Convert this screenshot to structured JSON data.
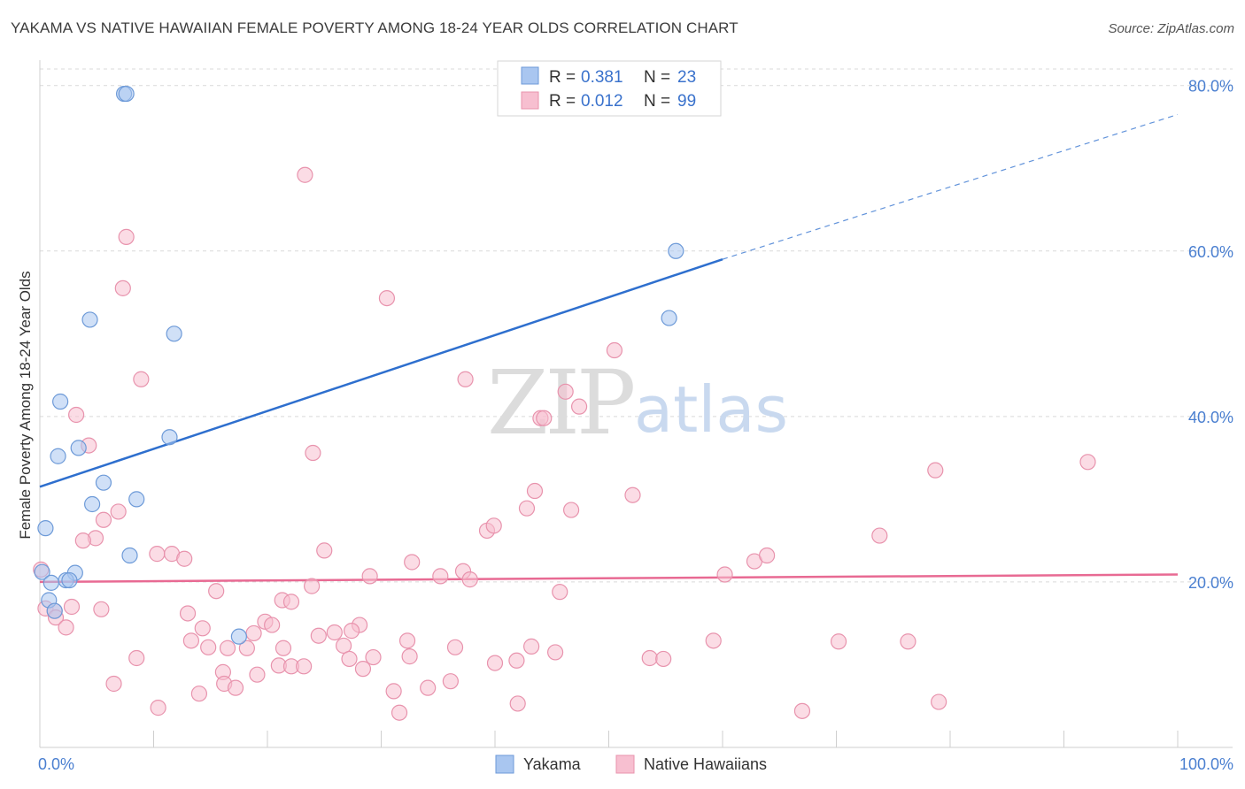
{
  "header": {
    "title": "YAKAMA VS NATIVE HAWAIIAN FEMALE POVERTY AMONG 18-24 YEAR OLDS CORRELATION CHART",
    "source": "Source: ZipAtlas.com"
  },
  "watermark": {
    "zip": "ZIP",
    "atlas": "atlas"
  },
  "legend": {
    "rows": [
      {
        "r_label": "R =",
        "r_value": "0.381",
        "n_label": "N =",
        "n_value": "23",
        "color": "#a9c6f0",
        "stroke": "#6d9ad8"
      },
      {
        "r_label": "R =",
        "r_value": "0.012",
        "n_label": "N =",
        "n_value": "99",
        "color": "#f7bfd0",
        "stroke": "#e893ad"
      }
    ]
  },
  "bottom_legend": {
    "items": [
      "Yakama",
      "Native Hawaiians"
    ]
  },
  "chart_data": {
    "type": "scatter",
    "title": "YAKAMA VS NATIVE HAWAIIAN FEMALE POVERTY AMONG 18-24 YEAR OLDS CORRELATION CHART",
    "xlabel": "",
    "ylabel": "Female Poverty Among 18-24 Year Olds",
    "xlim": [
      0,
      100
    ],
    "ylim": [
      0,
      82
    ],
    "x_tick_labels": [
      "0.0%",
      "100.0%"
    ],
    "y_ticks": [
      20,
      40,
      60,
      80
    ],
    "y_tick_labels": [
      "20.0%",
      "40.0%",
      "60.0%",
      "80.0%"
    ],
    "grid": true,
    "series": [
      {
        "name": "Yakama",
        "color": "#a9c6f0",
        "stroke": "#6d9ad8",
        "line_color": "#2e6fce",
        "trend": {
          "x0": 0,
          "y0": 31.5,
          "x1": 60,
          "y1": 59.0,
          "dash_to_x": 100,
          "dash_to_y": 76.5
        },
        "points": [
          [
            7.4,
            79.0
          ],
          [
            7.6,
            79.0
          ],
          [
            4.4,
            51.7
          ],
          [
            11.8,
            50.0
          ],
          [
            1.8,
            41.8
          ],
          [
            11.4,
            37.5
          ],
          [
            3.4,
            36.2
          ],
          [
            1.6,
            35.2
          ],
          [
            5.6,
            32.0
          ],
          [
            8.5,
            30.0
          ],
          [
            4.6,
            29.4
          ],
          [
            0.5,
            26.5
          ],
          [
            7.9,
            23.2
          ],
          [
            3.1,
            21.1
          ],
          [
            0.2,
            21.2
          ],
          [
            2.3,
            20.2
          ],
          [
            1.0,
            19.9
          ],
          [
            0.8,
            17.8
          ],
          [
            1.3,
            16.5
          ],
          [
            17.5,
            13.4
          ],
          [
            55.9,
            60.0
          ],
          [
            55.3,
            51.9
          ],
          [
            2.6,
            20.2
          ]
        ]
      },
      {
        "name": "Native Hawaiians",
        "color": "#f7bfd0",
        "stroke": "#e893ad",
        "line_color": "#e86a93",
        "trend": {
          "x0": 0,
          "y0": 20.0,
          "x1": 100,
          "y1": 20.9
        },
        "points": [
          [
            23.3,
            69.2
          ],
          [
            7.6,
            61.7
          ],
          [
            7.3,
            55.5
          ],
          [
            30.5,
            54.3
          ],
          [
            50.5,
            48.0
          ],
          [
            8.9,
            44.5
          ],
          [
            37.4,
            44.5
          ],
          [
            46.2,
            43.0
          ],
          [
            47.4,
            41.2
          ],
          [
            3.2,
            40.2
          ],
          [
            44.0,
            39.8
          ],
          [
            44.3,
            39.8
          ],
          [
            4.3,
            36.5
          ],
          [
            24.0,
            35.6
          ],
          [
            78.7,
            33.5
          ],
          [
            92.1,
            34.5
          ],
          [
            43.5,
            31.0
          ],
          [
            52.1,
            30.5
          ],
          [
            42.8,
            28.9
          ],
          [
            46.7,
            28.7
          ],
          [
            6.9,
            28.5
          ],
          [
            5.6,
            27.5
          ],
          [
            39.3,
            26.2
          ],
          [
            39.9,
            26.8
          ],
          [
            73.8,
            25.6
          ],
          [
            4.9,
            25.3
          ],
          [
            3.8,
            25.0
          ],
          [
            25.0,
            23.8
          ],
          [
            10.3,
            23.4
          ],
          [
            11.6,
            23.4
          ],
          [
            12.7,
            22.8
          ],
          [
            32.7,
            22.4
          ],
          [
            62.8,
            22.5
          ],
          [
            63.9,
            23.2
          ],
          [
            37.2,
            21.3
          ],
          [
            29.0,
            20.7
          ],
          [
            35.2,
            20.7
          ],
          [
            37.8,
            20.3
          ],
          [
            60.2,
            20.9
          ],
          [
            23.9,
            19.5
          ],
          [
            15.5,
            18.9
          ],
          [
            45.7,
            18.8
          ],
          [
            21.3,
            17.8
          ],
          [
            22.1,
            17.6
          ],
          [
            2.8,
            17.0
          ],
          [
            0.5,
            16.8
          ],
          [
            1.3,
            16.5
          ],
          [
            5.4,
            16.7
          ],
          [
            13.0,
            16.2
          ],
          [
            1.4,
            15.7
          ],
          [
            2.3,
            14.5
          ],
          [
            19.8,
            15.2
          ],
          [
            20.4,
            14.8
          ],
          [
            28.1,
            14.8
          ],
          [
            14.3,
            14.4
          ],
          [
            18.8,
            13.8
          ],
          [
            25.9,
            13.9
          ],
          [
            27.4,
            14.1
          ],
          [
            24.5,
            13.5
          ],
          [
            13.3,
            12.9
          ],
          [
            14.8,
            12.1
          ],
          [
            16.5,
            12.0
          ],
          [
            18.2,
            12.0
          ],
          [
            21.4,
            12.0
          ],
          [
            26.7,
            12.3
          ],
          [
            32.3,
            12.9
          ],
          [
            36.5,
            12.1
          ],
          [
            43.2,
            12.2
          ],
          [
            59.2,
            12.9
          ],
          [
            70.2,
            12.8
          ],
          [
            76.3,
            12.8
          ],
          [
            8.5,
            10.8
          ],
          [
            27.2,
            10.7
          ],
          [
            29.3,
            10.9
          ],
          [
            32.5,
            11.0
          ],
          [
            40.0,
            10.2
          ],
          [
            41.9,
            10.5
          ],
          [
            45.3,
            11.5
          ],
          [
            53.6,
            10.8
          ],
          [
            54.8,
            10.7
          ],
          [
            21.0,
            9.9
          ],
          [
            22.1,
            9.8
          ],
          [
            23.2,
            9.8
          ],
          [
            28.4,
            9.5
          ],
          [
            16.1,
            9.1
          ],
          [
            19.1,
            8.8
          ],
          [
            36.1,
            8.0
          ],
          [
            6.5,
            7.7
          ],
          [
            16.2,
            7.7
          ],
          [
            17.2,
            7.2
          ],
          [
            31.1,
            6.8
          ],
          [
            34.1,
            7.2
          ],
          [
            14.0,
            6.5
          ],
          [
            42.0,
            5.3
          ],
          [
            10.4,
            4.8
          ],
          [
            31.6,
            4.2
          ],
          [
            67.0,
            4.4
          ],
          [
            79.0,
            5.5
          ],
          [
            0.1,
            21.5
          ]
        ]
      }
    ]
  }
}
